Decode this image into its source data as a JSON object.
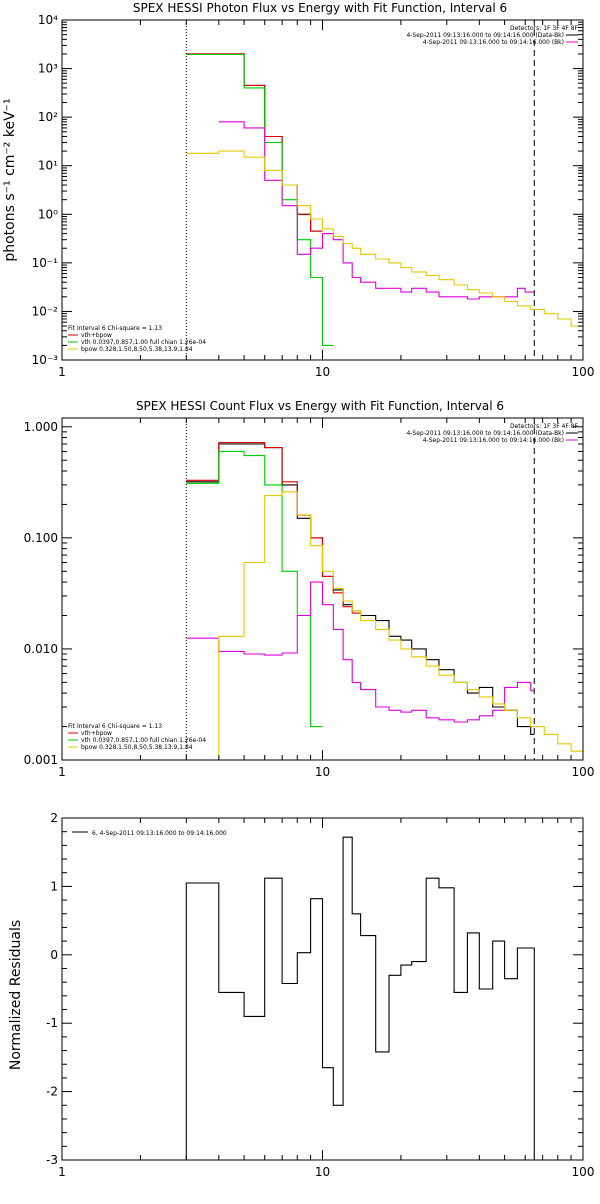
{
  "colors": {
    "total": "#000000",
    "vth_vnth": "#dd0000",
    "vth": "#00cc00",
    "bpow": "#e6c800",
    "bk": "#dd00dd",
    "axis": "#000000"
  },
  "chart_data": [
    {
      "type": "line",
      "title": "SPEX HESSI Photon Flux vs Energy with Fit Function, Interval 6",
      "ylabel": "photons s⁻¹ cm⁻² keV⁻¹",
      "xlabel": "",
      "xscale": "log",
      "yscale": "log",
      "xlim": [
        1,
        100
      ],
      "ylim": [
        0.001,
        10000
      ],
      "xticks": [
        {
          "v": 1,
          "label": "1"
        },
        {
          "v": 10,
          "label": "10"
        },
        {
          "v": 100,
          "label": "100"
        }
      ],
      "yticks": [
        {
          "v": 0.001,
          "label": "10⁻³"
        },
        {
          "v": 0.01,
          "label": "10⁻²"
        },
        {
          "v": 0.1,
          "label": "10⁻¹"
        },
        {
          "v": 1,
          "label": "10⁰"
        },
        {
          "v": 10,
          "label": "10¹"
        },
        {
          "v": 100,
          "label": "10²"
        },
        {
          "v": 1000,
          "label": "10³"
        },
        {
          "v": 10000,
          "label": "10⁴"
        }
      ],
      "vlines": [
        {
          "x": 3,
          "style": "dotted"
        },
        {
          "x": 65,
          "style": "dashed"
        }
      ],
      "legend_topright": [
        "Detectors: 1F 3F 4F 8F",
        "4-Sep-2011 09:13:16.000 to 09:14:16.000 (Data-Bk)",
        "4-Sep-2011 09:13:16.000 to 09:14:16.000 (Bk)"
      ],
      "legend_bottomleft": [
        {
          "label": "Fit Interval  6   Chi-square = 1.13"
        },
        {
          "label": "vth+bpow",
          "color": "#dd0000"
        },
        {
          "label": "vth 0.0397,0.857,1.00  full chian 1.26e-04",
          "color": "#00cc00"
        },
        {
          "label": "bpow 0.328,1.50,8.50,5.38,13.9,1.84",
          "color": "#e6c800"
        }
      ],
      "series": [
        {
          "key": "total",
          "color": "#000000",
          "edges": [
            3,
            4,
            5,
            6,
            7,
            8,
            9,
            10
          ],
          "values": [
            2000,
            2000,
            450,
            40,
            4,
            1,
            0.45
          ]
        },
        {
          "key": "vth_vnth",
          "color": "#dd0000",
          "edges": [
            3,
            4,
            5,
            6,
            7,
            8,
            9,
            10
          ],
          "values": [
            2000,
            2000,
            450,
            40,
            4,
            1,
            0.45
          ]
        },
        {
          "key": "vth",
          "color": "#00cc00",
          "edges": [
            3,
            4,
            5,
            6,
            7,
            8,
            9,
            10,
            11
          ],
          "values": [
            1950,
            1950,
            400,
            30,
            2,
            0.3,
            0.05,
            0.002
          ]
        },
        {
          "key": "bk",
          "color": "#dd00dd",
          "edges": [
            4,
            5,
            6,
            7,
            8,
            9,
            10,
            11,
            12,
            13,
            14,
            16,
            18,
            20,
            22,
            25,
            28,
            32,
            36,
            40,
            45,
            50,
            56,
            60,
            65
          ],
          "values": [
            80,
            60,
            5,
            1.5,
            0.15,
            0.2,
            0.4,
            0.3,
            0.1,
            0.05,
            0.04,
            0.03,
            0.03,
            0.025,
            0.03,
            0.025,
            0.02,
            0.02,
            0.018,
            0.02,
            0.02,
            0.02,
            0.03,
            0.025
          ]
        },
        {
          "key": "bpow",
          "color": "#e6c800",
          "edges": [
            3,
            4,
            5,
            6,
            7,
            8,
            9,
            10,
            11,
            12,
            13,
            14,
            16,
            18,
            20,
            22,
            25,
            28,
            32,
            36,
            40,
            45,
            50,
            56,
            63,
            71,
            80,
            90,
            100
          ],
          "values": [
            18,
            20,
            15,
            8,
            4,
            1.5,
            0.8,
            0.5,
            0.35,
            0.25,
            0.2,
            0.15,
            0.12,
            0.1,
            0.08,
            0.065,
            0.055,
            0.045,
            0.035,
            0.028,
            0.024,
            0.02,
            0.016,
            0.013,
            0.011,
            0.009,
            0.007,
            0.005
          ]
        }
      ]
    },
    {
      "type": "line",
      "title": "SPEX HESSI Count Flux vs Energy with Fit Function, Interval 6",
      "ylabel": "",
      "xlabel": "",
      "xscale": "log",
      "yscale": "log",
      "xlim": [
        1,
        100
      ],
      "ylim": [
        0.001,
        1.2
      ],
      "xticks": [
        {
          "v": 1,
          "label": "1"
        },
        {
          "v": 10,
          "label": "10"
        },
        {
          "v": 100,
          "label": "100"
        }
      ],
      "yticks": [
        {
          "v": 0.001,
          "label": "0.001"
        },
        {
          "v": 0.01,
          "label": "0.010"
        },
        {
          "v": 0.1,
          "label": "0.100"
        },
        {
          "v": 1,
          "label": "1.000"
        }
      ],
      "vlines": [
        {
          "x": 3,
          "style": "dotted"
        },
        {
          "x": 65,
          "style": "dashed"
        }
      ],
      "legend_topright": [
        "Detectors: 1F 3F 4F 8F",
        "4-Sep-2011 09:13:16.000 to 09:14:16.000 (Data-Bk)",
        "4-Sep-2011 09:13:16.000 to 09:14:16.000 (Bk)"
      ],
      "legend_bottomleft": [
        {
          "label": "Fit Interval  6   Chi-square = 1.13"
        },
        {
          "label": "vth+bpow",
          "color": "#dd0000"
        },
        {
          "label": "vth 0.0397,0.857,1.00  full chian 1.26e-04",
          "color": "#00cc00"
        },
        {
          "label": "bpow 0.328,1.50,8.50,5.38,13.9,1.84",
          "color": "#e6c800"
        }
      ],
      "series": [
        {
          "key": "total",
          "color": "#000000",
          "edges": [
            3,
            4,
            5,
            6,
            7,
            8,
            9,
            10,
            11,
            12,
            13,
            14,
            16,
            18,
            20,
            22,
            25,
            28,
            32,
            36,
            40,
            45,
            50,
            56,
            63,
            65
          ],
          "values": [
            0.32,
            0.7,
            0.7,
            0.65,
            0.3,
            0.15,
            0.1,
            0.045,
            0.034,
            0.025,
            0.022,
            0.02,
            0.018,
            0.013,
            0.012,
            0.01,
            0.008,
            0.0065,
            0.005,
            0.004,
            0.0045,
            0.003,
            0.0028,
            0.002,
            0.0017
          ]
        },
        {
          "key": "vth_vnth",
          "color": "#dd0000",
          "edges": [
            3,
            4,
            5,
            6,
            7,
            8,
            9,
            10,
            11,
            12,
            13,
            14
          ],
          "values": [
            0.33,
            0.72,
            0.72,
            0.65,
            0.32,
            0.16,
            0.1,
            0.045,
            0.032,
            0.024,
            0.021
          ]
        },
        {
          "key": "vth",
          "color": "#00cc00",
          "edges": [
            3,
            4,
            5,
            6,
            7,
            8,
            9,
            10
          ],
          "values": [
            0.31,
            0.6,
            0.55,
            0.3,
            0.05,
            0.02,
            0.002
          ]
        },
        {
          "key": "bk",
          "color": "#dd00dd",
          "edges": [
            3,
            4,
            5,
            6,
            7,
            8,
            9,
            10,
            11,
            12,
            13,
            14,
            16,
            18,
            20,
            22,
            25,
            28,
            32,
            36,
            40,
            45,
            50,
            56,
            63,
            65
          ],
          "values": [
            0.0125,
            0.0095,
            0.009,
            0.0088,
            0.0092,
            0.02,
            0.04,
            0.025,
            0.015,
            0.008,
            0.005,
            0.0043,
            0.003,
            0.0028,
            0.0027,
            0.0028,
            0.0024,
            0.0023,
            0.0022,
            0.0023,
            0.0025,
            0.0028,
            0.0045,
            0.005,
            0.0042
          ]
        },
        {
          "key": "bpow",
          "color": "#e6c800",
          "edges": [
            3,
            4,
            5,
            6,
            7,
            8,
            9,
            10,
            11,
            12,
            13,
            14,
            16,
            18,
            20,
            22,
            25,
            28,
            32,
            36,
            40,
            45,
            50,
            56,
            63,
            71,
            80,
            90,
            100
          ],
          "values": [
            0.001,
            0.013,
            0.06,
            0.24,
            0.26,
            0.16,
            0.085,
            0.05,
            0.035,
            0.027,
            0.022,
            0.018,
            0.015,
            0.012,
            0.01,
            0.0085,
            0.007,
            0.0058,
            0.005,
            0.0043,
            0.0037,
            0.0032,
            0.0028,
            0.0024,
            0.002,
            0.0017,
            0.0014,
            0.0012
          ]
        }
      ]
    },
    {
      "type": "line",
      "title": "",
      "ylabel": "Normalized Residuals",
      "xlabel": "",
      "xscale": "log",
      "yscale": "linear",
      "xlim": [
        1,
        100
      ],
      "ylim": [
        -3,
        2
      ],
      "xticks": [
        {
          "v": 1,
          "label": "1"
        },
        {
          "v": 10,
          "label": "10"
        },
        {
          "v": 100,
          "label": "100"
        }
      ],
      "yticks": [
        {
          "v": -3,
          "label": "-3"
        },
        {
          "v": -2,
          "label": "-2"
        },
        {
          "v": -1,
          "label": "-1"
        },
        {
          "v": 0,
          "label": "0"
        },
        {
          "v": 1,
          "label": "1"
        },
        {
          "v": 2,
          "label": "2"
        }
      ],
      "legend_topleft": "6,  4-Sep-2011 09:13:16.000 to 09:14:16.000",
      "series": [
        {
          "key": "residuals",
          "color": "#000000",
          "edges": [
            3,
            4,
            5,
            6,
            7,
            8,
            9,
            10,
            11,
            12,
            13,
            14,
            16,
            18,
            20,
            22,
            25,
            28,
            32,
            36,
            40,
            45,
            50,
            56,
            63,
            65
          ],
          "values": [
            1.05,
            -0.55,
            -0.9,
            1.12,
            -0.42,
            0.03,
            0.82,
            -1.65,
            -2.2,
            1.72,
            0.6,
            0.28,
            -1.42,
            -0.3,
            -0.15,
            -0.1,
            1.12,
            0.98,
            -0.55,
            0.32,
            -0.5,
            0.2,
            -0.35,
            0.1,
            0.1
          ]
        }
      ]
    }
  ]
}
